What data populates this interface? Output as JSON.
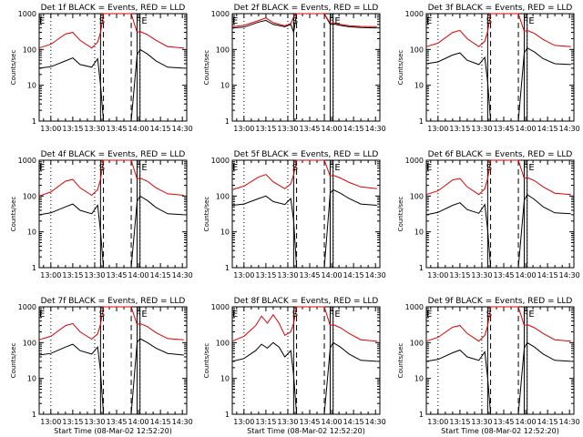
{
  "chart_data": [
    {
      "type": "line",
      "title": "Det 1f BLACK = Events, RED = LLD",
      "xlabel": "",
      "ylabel": "Counts/sec",
      "yscale": "log",
      "ylim": [
        1,
        1000
      ],
      "y_tick_labels": [
        "1",
        "10",
        "100",
        "1000"
      ],
      "x_tick_labels": [
        "13:00",
        "13:15",
        "13:30",
        "13:45",
        "14:00",
        "14:15",
        "14:30"
      ],
      "markers": [
        "E",
        "S",
        "F",
        "E"
      ],
      "series": [
        {
          "name": "Events",
          "color": "#000000",
          "x": [
            "12:52",
            "13:00",
            "13:10",
            "13:15",
            "13:20",
            "13:28",
            "13:32",
            "13:34",
            "13:36",
            "13:45",
            "13:55",
            "13:59",
            "14:01",
            "14:06",
            "14:12",
            "14:20",
            "14:31"
          ],
          "values": [
            30,
            33,
            48,
            58,
            38,
            32,
            55,
            10,
            1,
            1,
            1,
            70,
            100,
            75,
            48,
            32,
            30
          ]
        },
        {
          "name": "LLD",
          "color": "#dd0000",
          "x": [
            "12:52",
            "13:00",
            "13:10",
            "13:15",
            "13:20",
            "13:28",
            "13:32",
            "13:34",
            "13:36",
            "13:45",
            "13:55",
            "13:59",
            "14:01",
            "14:06",
            "14:12",
            "14:20",
            "14:31"
          ],
          "values": [
            110,
            140,
            270,
            300,
            180,
            110,
            160,
            300,
            1000,
            1000,
            1000,
            300,
            320,
            260,
            180,
            120,
            110
          ]
        }
      ]
    },
    {
      "type": "line",
      "title": "Det 2f BLACK = Events, RED = LLD",
      "xlabel": "",
      "ylabel": "Counts/sec",
      "yscale": "log",
      "ylim": [
        1,
        1000
      ],
      "y_tick_labels": [
        "1",
        "10",
        "100",
        "1000"
      ],
      "x_tick_labels": [
        "13:00",
        "13:15",
        "13:30",
        "13:45",
        "14:00",
        "14:15",
        "14:30"
      ],
      "markers": [
        "E",
        "S",
        "F",
        "E"
      ],
      "series": [
        {
          "name": "Events",
          "color": "#000000",
          "x": [
            "12:52",
            "13:00",
            "13:10",
            "13:15",
            "13:20",
            "13:28",
            "13:32",
            "13:34",
            "13:36",
            "13:45",
            "13:55",
            "13:59",
            "14:01",
            "14:06",
            "14:12",
            "14:20",
            "14:31"
          ],
          "values": [
            400,
            420,
            580,
            650,
            500,
            430,
            500,
            300,
            1000,
            1000,
            1000,
            500,
            520,
            470,
            430,
            410,
            400
          ]
        },
        {
          "name": "LLD",
          "color": "#dd0000",
          "x": [
            "12:52",
            "13:00",
            "13:10",
            "13:15",
            "13:20",
            "13:28",
            "13:32",
            "13:34",
            "13:36",
            "13:45",
            "13:55",
            "13:59",
            "14:01",
            "14:06",
            "14:12",
            "14:20",
            "14:31"
          ],
          "values": [
            430,
            470,
            640,
            760,
            560,
            460,
            530,
            800,
            1000,
            1000,
            1000,
            540,
            560,
            500,
            460,
            440,
            430
          ]
        }
      ]
    },
    {
      "type": "line",
      "title": "Det 3f BLACK = Events, RED = LLD",
      "xlabel": "",
      "ylabel": "Counts/sec",
      "yscale": "log",
      "ylim": [
        1,
        1000
      ],
      "y_tick_labels": [
        "1",
        "10",
        "100",
        "1000"
      ],
      "x_tick_labels": [
        "13:00",
        "13:15",
        "13:30",
        "13:45",
        "14:00",
        "14:15",
        "14:30"
      ],
      "markers": [
        "E",
        "S",
        "F",
        "E"
      ],
      "series": [
        {
          "name": "Events",
          "color": "#000000",
          "x": [
            "12:52",
            "13:00",
            "13:10",
            "13:15",
            "13:20",
            "13:28",
            "13:32",
            "13:34",
            "13:36",
            "13:45",
            "13:55",
            "13:59",
            "14:01",
            "14:06",
            "14:12",
            "14:20",
            "14:31"
          ],
          "values": [
            40,
            45,
            70,
            80,
            50,
            38,
            60,
            12,
            1,
            1,
            1,
            80,
            110,
            85,
            55,
            40,
            38
          ]
        },
        {
          "name": "LLD",
          "color": "#dd0000",
          "x": [
            "12:52",
            "13:00",
            "13:10",
            "13:15",
            "13:20",
            "13:28",
            "13:32",
            "13:34",
            "13:36",
            "13:45",
            "13:55",
            "13:59",
            "14:01",
            "14:06",
            "14:12",
            "14:20",
            "14:31"
          ],
          "values": [
            120,
            150,
            300,
            340,
            200,
            120,
            170,
            320,
            1000,
            1000,
            1000,
            320,
            340,
            280,
            190,
            130,
            120
          ]
        }
      ]
    },
    {
      "type": "line",
      "title": "Det 4f BLACK = Events, RED = LLD",
      "xlabel": "",
      "ylabel": "Counts/sec",
      "yscale": "log",
      "ylim": [
        1,
        1000
      ],
      "y_tick_labels": [
        "1",
        "10",
        "100",
        "1000"
      ],
      "x_tick_labels": [
        "13:00",
        "13:15",
        "13:30",
        "13:45",
        "14:00",
        "14:15",
        "14:30"
      ],
      "markers": [
        "E",
        "S",
        "F",
        "E"
      ],
      "series": [
        {
          "name": "Events",
          "color": "#000000",
          "x": [
            "12:52",
            "13:00",
            "13:10",
            "13:15",
            "13:20",
            "13:28",
            "13:32",
            "13:34",
            "13:36",
            "13:45",
            "13:55",
            "13:59",
            "14:01",
            "14:06",
            "14:12",
            "14:20",
            "14:31"
          ],
          "values": [
            30,
            34,
            50,
            60,
            40,
            32,
            55,
            10,
            1,
            1,
            1,
            70,
            100,
            75,
            48,
            32,
            30
          ]
        },
        {
          "name": "LLD",
          "color": "#dd0000",
          "x": [
            "12:52",
            "13:00",
            "13:10",
            "13:15",
            "13:20",
            "13:28",
            "13:32",
            "13:34",
            "13:36",
            "13:45",
            "13:55",
            "13:59",
            "14:01",
            "14:06",
            "14:12",
            "14:20",
            "14:31"
          ],
          "values": [
            100,
            130,
            260,
            290,
            170,
            105,
            150,
            300,
            1000,
            1000,
            1000,
            300,
            320,
            260,
            170,
            115,
            105
          ]
        }
      ]
    },
    {
      "type": "line",
      "title": "Det 5f BLACK = Events, RED = LLD",
      "xlabel": "",
      "ylabel": "Counts/sec",
      "yscale": "log",
      "ylim": [
        1,
        1000
      ],
      "y_tick_labels": [
        "1",
        "10",
        "100",
        "1000"
      ],
      "x_tick_labels": [
        "13:00",
        "13:15",
        "13:30",
        "13:45",
        "14:00",
        "14:15",
        "14:30"
      ],
      "markers": [
        "E",
        "S",
        "F",
        "E"
      ],
      "series": [
        {
          "name": "Events",
          "color": "#000000",
          "x": [
            "12:52",
            "13:00",
            "13:10",
            "13:15",
            "13:20",
            "13:28",
            "13:32",
            "13:34",
            "13:36",
            "13:45",
            "13:55",
            "13:59",
            "14:01",
            "14:06",
            "14:12",
            "14:20",
            "14:31"
          ],
          "values": [
            55,
            60,
            85,
            100,
            70,
            58,
            85,
            20,
            1,
            1,
            1,
            120,
            150,
            120,
            85,
            60,
            55
          ]
        },
        {
          "name": "LLD",
          "color": "#dd0000",
          "x": [
            "12:52",
            "13:00",
            "13:10",
            "13:15",
            "13:20",
            "13:28",
            "13:32",
            "13:34",
            "13:36",
            "13:45",
            "13:55",
            "13:59",
            "14:01",
            "14:06",
            "14:12",
            "14:20",
            "14:31"
          ],
          "values": [
            150,
            190,
            340,
            400,
            250,
            160,
            220,
            400,
            1000,
            1000,
            1000,
            360,
            380,
            320,
            240,
            180,
            160
          ]
        }
      ]
    },
    {
      "type": "line",
      "title": "Det 6f BLACK = Events, RED = LLD",
      "xlabel": "",
      "ylabel": "Counts/sec",
      "yscale": "log",
      "ylim": [
        1,
        1000
      ],
      "y_tick_labels": [
        "1",
        "10",
        "100",
        "1000"
      ],
      "x_tick_labels": [
        "13:00",
        "13:15",
        "13:30",
        "13:45",
        "14:00",
        "14:15",
        "14:30"
      ],
      "markers": [
        "E",
        "S",
        "F",
        "E"
      ],
      "series": [
        {
          "name": "Events",
          "color": "#000000",
          "x": [
            "12:52",
            "13:00",
            "13:10",
            "13:15",
            "13:20",
            "13:28",
            "13:32",
            "13:34",
            "13:36",
            "13:45",
            "13:55",
            "13:59",
            "14:01",
            "14:06",
            "14:12",
            "14:20",
            "14:31"
          ],
          "values": [
            30,
            35,
            55,
            65,
            42,
            33,
            58,
            11,
            1,
            1,
            1,
            75,
            110,
            80,
            50,
            34,
            32
          ]
        },
        {
          "name": "LLD",
          "color": "#dd0000",
          "x": [
            "12:52",
            "13:00",
            "13:10",
            "13:15",
            "13:20",
            "13:28",
            "13:32",
            "13:34",
            "13:36",
            "13:45",
            "13:55",
            "13:59",
            "14:01",
            "14:06",
            "14:12",
            "14:20",
            "14:31"
          ],
          "values": [
            110,
            140,
            280,
            310,
            180,
            110,
            160,
            310,
            1000,
            1000,
            1000,
            310,
            330,
            270,
            180,
            120,
            110
          ]
        }
      ]
    },
    {
      "type": "line",
      "title": "Det 7f BLACK = Events, RED = LLD",
      "xlabel": "Start Time (08-Mar-02 12:52:20)",
      "ylabel": "Counts/sec",
      "yscale": "log",
      "ylim": [
        1,
        1000
      ],
      "y_tick_labels": [
        "1",
        "10",
        "100",
        "1000"
      ],
      "x_tick_labels": [
        "13:00",
        "13:15",
        "13:30",
        "13:45",
        "14:00",
        "14:15",
        "14:30"
      ],
      "markers": [
        "E",
        "S",
        "F",
        "E"
      ],
      "series": [
        {
          "name": "Events",
          "color": "#000000",
          "x": [
            "12:52",
            "13:00",
            "13:10",
            "13:15",
            "13:20",
            "13:28",
            "13:32",
            "13:34",
            "13:36",
            "13:45",
            "13:55",
            "13:59",
            "14:01",
            "14:06",
            "14:12",
            "14:20",
            "14:31"
          ],
          "values": [
            45,
            50,
            75,
            90,
            60,
            48,
            75,
            15,
            1,
            1,
            1,
            100,
            130,
            100,
            70,
            50,
            45
          ]
        },
        {
          "name": "LLD",
          "color": "#dd0000",
          "x": [
            "12:52",
            "13:00",
            "13:10",
            "13:15",
            "13:20",
            "13:28",
            "13:32",
            "13:34",
            "13:36",
            "13:45",
            "13:55",
            "13:59",
            "14:01",
            "14:06",
            "14:12",
            "14:20",
            "14:31"
          ],
          "values": [
            120,
            150,
            300,
            340,
            200,
            125,
            175,
            330,
            1000,
            1000,
            1000,
            320,
            340,
            280,
            190,
            130,
            120
          ]
        }
      ]
    },
    {
      "type": "line",
      "title": "Det 8f BLACK = Events, RED = LLD",
      "xlabel": "Start Time (08-Mar-02 12:52:20)",
      "ylabel": "Counts/sec",
      "yscale": "log",
      "ylim": [
        1,
        1000
      ],
      "y_tick_labels": [
        "1",
        "10",
        "100",
        "1000"
      ],
      "x_tick_labels": [
        "13:00",
        "13:15",
        "13:30",
        "13:45",
        "14:00",
        "14:15",
        "14:30"
      ],
      "markers": [
        "E",
        "S",
        "F",
        "E"
      ],
      "series": [
        {
          "name": "Events",
          "color": "#000000",
          "x": [
            "12:52",
            "13:00",
            "13:08",
            "13:12",
            "13:16",
            "13:20",
            "13:24",
            "13:28",
            "13:32",
            "13:34",
            "13:36",
            "13:45",
            "13:55",
            "13:59",
            "14:01",
            "14:06",
            "14:12",
            "14:20",
            "14:31"
          ],
          "values": [
            30,
            36,
            60,
            90,
            70,
            100,
            75,
            40,
            60,
            12,
            1,
            1,
            1,
            70,
            100,
            75,
            48,
            32,
            30
          ]
        },
        {
          "name": "LLD",
          "color": "#dd0000",
          "x": [
            "12:52",
            "13:00",
            "13:08",
            "13:12",
            "13:16",
            "13:20",
            "13:24",
            "13:28",
            "13:32",
            "13:34",
            "13:36",
            "13:45",
            "13:55",
            "13:59",
            "14:01",
            "14:06",
            "14:12",
            "14:20",
            "14:31"
          ],
          "values": [
            110,
            150,
            300,
            550,
            350,
            600,
            350,
            160,
            200,
            350,
            1000,
            1000,
            1000,
            300,
            320,
            260,
            180,
            120,
            110
          ]
        }
      ]
    },
    {
      "type": "line",
      "title": "Det 9f BLACK = Events, RED = LLD",
      "xlabel": "Start Time (08-Mar-02 12:52:20)",
      "ylabel": "Counts/sec",
      "yscale": "log",
      "ylim": [
        1,
        1000
      ],
      "y_tick_labels": [
        "1",
        "10",
        "100",
        "1000"
      ],
      "x_tick_labels": [
        "13:00",
        "13:15",
        "13:30",
        "13:45",
        "14:00",
        "14:15",
        "14:30"
      ],
      "markers": [
        "E",
        "S",
        "F",
        "E"
      ],
      "series": [
        {
          "name": "Events",
          "color": "#000000",
          "x": [
            "12:52",
            "13:00",
            "13:10",
            "13:15",
            "13:20",
            "13:28",
            "13:32",
            "13:34",
            "13:36",
            "13:45",
            "13:55",
            "13:59",
            "14:01",
            "14:06",
            "14:12",
            "14:20",
            "14:31"
          ],
          "values": [
            30,
            34,
            52,
            62,
            40,
            32,
            55,
            10,
            1,
            1,
            1,
            70,
            100,
            75,
            48,
            32,
            30
          ]
        },
        {
          "name": "LLD",
          "color": "#dd0000",
          "x": [
            "12:52",
            "13:00",
            "13:10",
            "13:15",
            "13:20",
            "13:28",
            "13:32",
            "13:34",
            "13:36",
            "13:45",
            "13:55",
            "13:59",
            "14:01",
            "14:06",
            "14:12",
            "14:20",
            "14:31"
          ],
          "values": [
            110,
            140,
            270,
            300,
            180,
            110,
            160,
            300,
            1000,
            1000,
            1000,
            300,
            320,
            260,
            180,
            120,
            110
          ]
        }
      ]
    }
  ]
}
